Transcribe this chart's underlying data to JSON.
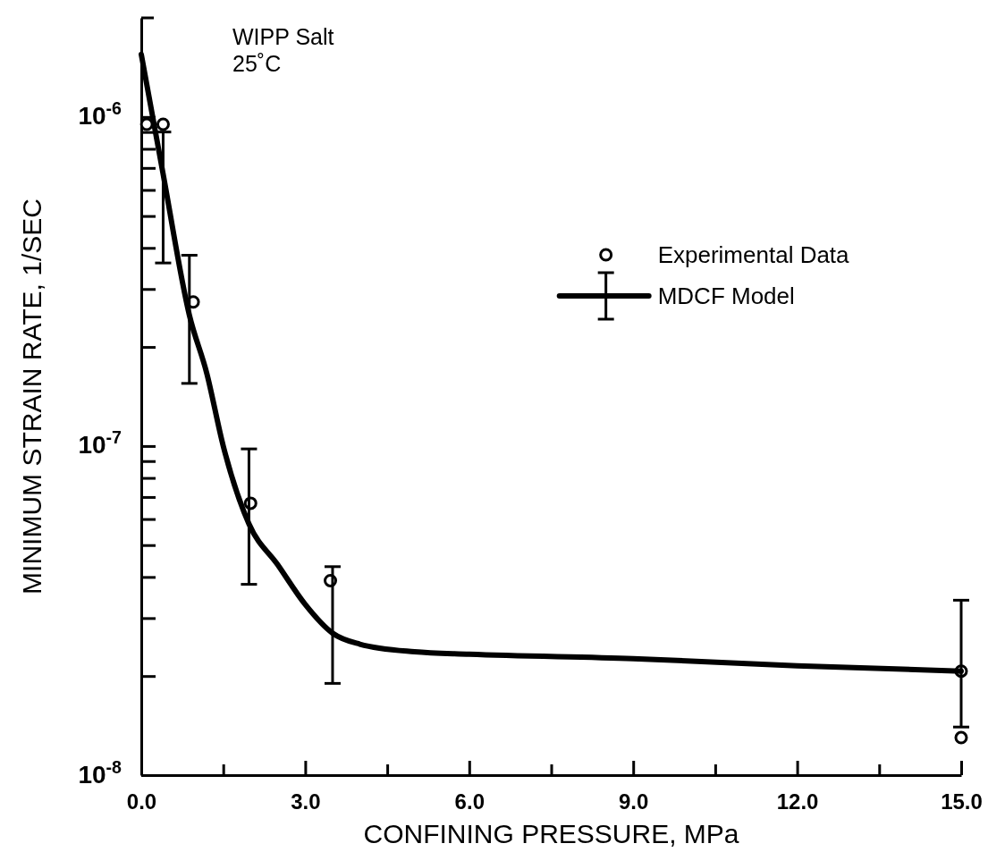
{
  "chart_data": {
    "type": "line",
    "xlabel": "CONFINING PRESSURE, MPa",
    "ylabel": "MINIMUM STRAIN RATE, 1/SEC",
    "annotations": [
      "WIPP Salt",
      "25˚C"
    ],
    "log": "y",
    "legend": "top right",
    "xlim": [
      0,
      15
    ],
    "ylim": [
      1e-08,
      2e-06
    ],
    "xticks": [
      {
        "value": 0,
        "label": "0.0"
      },
      {
        "value": 1.5,
        "label": null
      },
      {
        "value": 3,
        "label": "3.0"
      },
      {
        "value": 4.5,
        "label": null
      },
      {
        "value": 6,
        "label": "6.0"
      },
      {
        "value": 7.5,
        "label": null
      },
      {
        "value": 9,
        "label": "9.0"
      },
      {
        "value": 10.5,
        "label": null
      },
      {
        "value": 12,
        "label": "12.0"
      },
      {
        "value": 13.5,
        "label": null
      },
      {
        "value": 15,
        "label": "15.0"
      }
    ],
    "yticks": [
      {
        "value": 1e-08,
        "label": "10$^{-8}$"
      },
      {
        "value": 2e-08,
        "label": null
      },
      {
        "value": 3e-08,
        "label": null
      },
      {
        "value": 4e-08,
        "label": null
      },
      {
        "value": 5e-08,
        "label": null
      },
      {
        "value": 6e-08,
        "label": null
      },
      {
        "value": 7e-08,
        "label": null
      },
      {
        "value": 8e-08,
        "label": null
      },
      {
        "value": 9e-08,
        "label": null
      },
      {
        "value": 1e-07,
        "label": "10$^{-7}$"
      },
      {
        "value": 2e-07,
        "label": null
      },
      {
        "value": 3e-07,
        "label": null
      },
      {
        "value": 4e-07,
        "label": null
      },
      {
        "value": 5e-07,
        "label": null
      },
      {
        "value": 6e-07,
        "label": null
      },
      {
        "value": 7e-07,
        "label": null
      },
      {
        "value": 8e-07,
        "label": null
      },
      {
        "value": 9e-07,
        "label": null
      },
      {
        "value": 1e-06,
        "label": "10$^{-6}$"
      }
    ],
    "series": [
      {
        "name": "Experimental Data",
        "type": "scatter",
        "marker": "circle",
        "color": "#000000",
        "x": [
          0.1,
          0.4,
          0.95,
          2.0,
          3.46,
          15,
          15
        ],
        "values": [
          9.5e-07,
          9.5e-07,
          2.74e-07,
          6.7e-08,
          3.9e-08,
          2.07e-08,
          1.3e-08
        ]
      },
      {
        "name": "MDCF Model",
        "line_style": "solid",
        "color": "#000000",
        "x": [
          0,
          0.4,
          0.88,
          1.2,
          1.5,
          1.97,
          2.5,
          3.0,
          3.5,
          4.0,
          5.0,
          6.0,
          9.0,
          12.0,
          15.0
        ],
        "values": [
          1.55e-06,
          6.7e-07,
          2.5e-07,
          1.66e-07,
          1e-07,
          5.8e-08,
          4.35e-08,
          3.3e-08,
          2.7e-08,
          2.5e-08,
          2.37e-08,
          2.33e-08,
          2.26e-08,
          2.15e-08,
          2.07e-08
        ],
        "errors": [
          null,
          [
            3.6e-07,
            9e-07
          ],
          [
            1.55e-07,
            3.8e-07
          ],
          null,
          null,
          [
            3.8e-08,
            9.8e-08
          ],
          null,
          null,
          [
            1.9e-08,
            4.3e-08
          ],
          null,
          null,
          null,
          null,
          null,
          [
            1.4e-08,
            3.4e-08
          ]
        ]
      }
    ]
  }
}
